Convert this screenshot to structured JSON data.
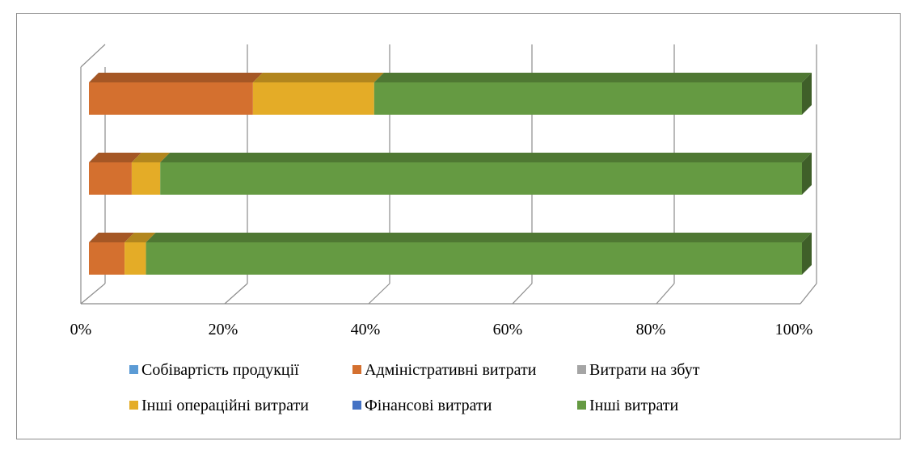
{
  "chart_data": {
    "type": "bar",
    "orientation": "horizontal",
    "stacking": "percent",
    "style": "3d",
    "categories": [
      "",
      "",
      ""
    ],
    "series": [
      {
        "name": "Собівартість продукції",
        "color": "#5b9bd5",
        "values": [
          0,
          0,
          0
        ]
      },
      {
        "name": "Адміністративні витрати",
        "color": "#d4702f",
        "values": [
          5,
          6,
          23
        ]
      },
      {
        "name": "Витрати на збут",
        "color": "#a5a5a5",
        "values": [
          0,
          0,
          0
        ]
      },
      {
        "name": "Інші операційні  витрати",
        "color": "#e4ac27",
        "values": [
          3,
          4,
          17
        ]
      },
      {
        "name": "Фінансові витрати",
        "color": "#4472c4",
        "values": [
          0,
          0,
          0
        ]
      },
      {
        "name": "Інші витрати",
        "color": "#659a42",
        "values": [
          92,
          90,
          60
        ]
      }
    ],
    "x_ticks": [
      "0%",
      "20%",
      "40%",
      "60%",
      "80%",
      "100%"
    ],
    "xlim": [
      0,
      100
    ],
    "grid": true,
    "legend_position": "bottom",
    "title": "",
    "xlabel": "",
    "ylabel": ""
  }
}
